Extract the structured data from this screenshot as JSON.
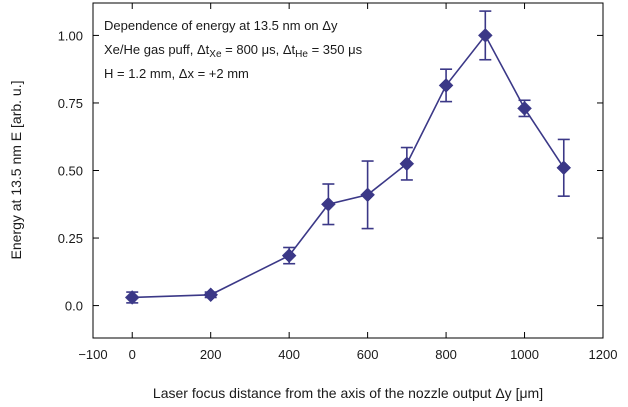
{
  "chart_data": {
    "type": "scatter",
    "title": "",
    "xlabel_main": "Laser focus distance from the axis of the nozzle output ",
    "xlabel_sym": "Δy",
    "xlabel_unit": " [μm]",
    "ylabel": "Energy at 13.5 nm E [arb. u.]",
    "xlim": [
      -100,
      1200
    ],
    "ylim": [
      -0.12,
      1.12
    ],
    "xticks": [
      -100,
      0,
      200,
      400,
      600,
      800,
      1000,
      1200
    ],
    "xtick_labels": [
      "−100",
      "0",
      "200",
      "400",
      "600",
      "800",
      "1000",
      "1200"
    ],
    "yticks": [
      0.0,
      0.25,
      0.5,
      0.75,
      1.0
    ],
    "ytick_labels": [
      "0.0",
      "0.25",
      "0.50",
      "0.75",
      "1.00"
    ],
    "grid": false,
    "legend": "none",
    "series": [
      {
        "marker": "diamond",
        "color": "#3b3887",
        "connected": true,
        "x": [
          0,
          200,
          400,
          500,
          600,
          700,
          800,
          900,
          1000,
          1100
        ],
        "y": [
          0.03,
          0.04,
          0.185,
          0.375,
          0.41,
          0.525,
          0.815,
          1.0,
          0.73,
          0.51
        ],
        "err": [
          0.02,
          0.01,
          0.03,
          0.075,
          0.125,
          0.06,
          0.06,
          0.09,
          0.03,
          0.105
        ]
      }
    ],
    "annotations": {
      "line1_text": "Dependence of energy at 13.5 nm on ",
      "line1_sym": "Δy",
      "line2_a": "Xe/He gas puff, ",
      "line2_dt1": "Δt",
      "line2_sub1": "Xe",
      "line2_b": " = 800 μs, ",
      "line2_dt2": "Δt",
      "line2_sub2": "He",
      "line2_c": " = 350 μs",
      "line3_a": "H = 1.2 mm, ",
      "line3_dx": "Δx",
      "line3_b": " = +2 mm"
    }
  }
}
